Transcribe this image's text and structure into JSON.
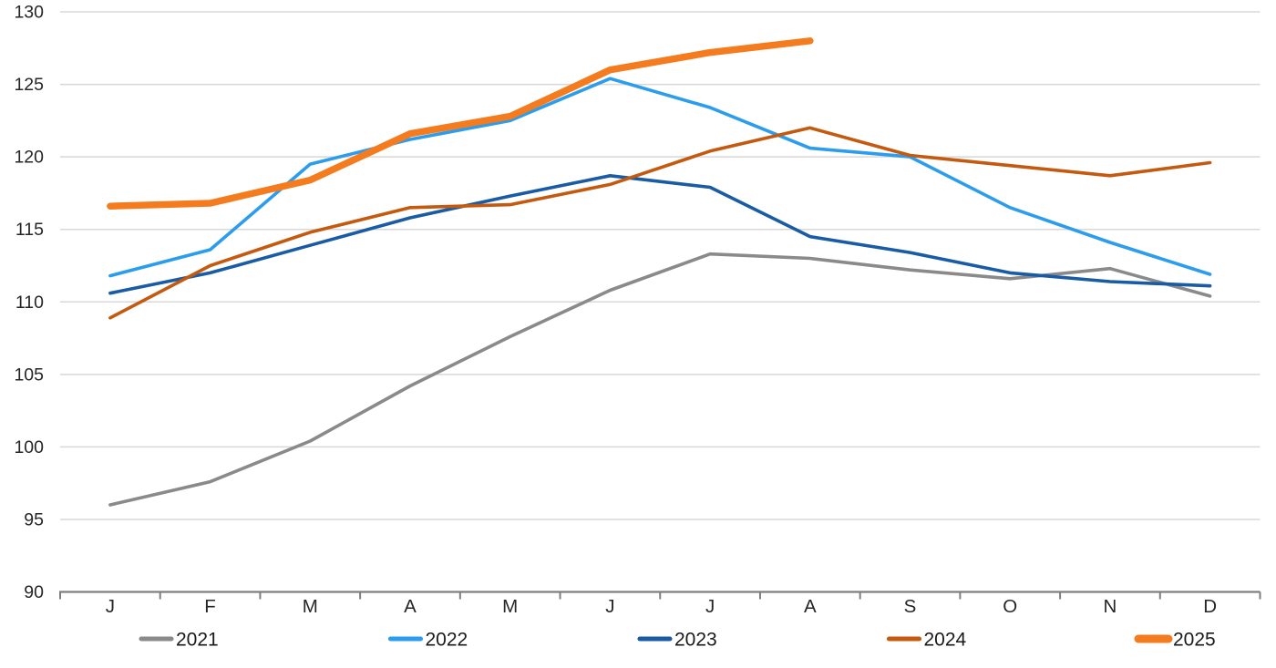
{
  "chart_data": {
    "type": "line",
    "title": "",
    "xlabel": "",
    "ylabel": "",
    "x_categories": [
      "J",
      "F",
      "M",
      "A",
      "M",
      "J",
      "J",
      "A",
      "S",
      "O",
      "N",
      "D"
    ],
    "y_ticks": [
      90,
      95,
      100,
      105,
      110,
      115,
      120,
      125,
      130
    ],
    "ylim": [
      90,
      130
    ],
    "grid": "horizontal",
    "legend_position": "bottom",
    "series": [
      {
        "name": "2021",
        "color": "#8A8A8A",
        "width": 3.6,
        "values": [
          96.0,
          97.6,
          100.4,
          104.2,
          107.6,
          110.8,
          113.3,
          113.0,
          112.2,
          111.6,
          112.3,
          110.4
        ]
      },
      {
        "name": "2022",
        "color": "#2C9CEC",
        "width": 3.6,
        "values": [
          111.8,
          113.6,
          119.5,
          121.2,
          122.5,
          125.4,
          123.4,
          120.6,
          120.0,
          116.5,
          114.1,
          111.9
        ]
      },
      {
        "name": "2023",
        "color": "#1A5BA5",
        "width": 3.6,
        "values": [
          110.6,
          112.0,
          113.9,
          115.8,
          117.3,
          118.7,
          117.9,
          114.5,
          113.4,
          112.0,
          111.4,
          111.1
        ]
      },
      {
        "name": "2024",
        "color": "#C45A10",
        "width": 3.6,
        "values": [
          108.9,
          112.5,
          114.8,
          116.5,
          116.7,
          118.1,
          120.4,
          122.0,
          120.1,
          119.4,
          118.7,
          119.6
        ]
      },
      {
        "name": "2025",
        "color": "#F57B1F",
        "width": 7.5,
        "values": [
          116.6,
          116.8,
          118.4,
          121.6,
          122.8,
          126.0,
          127.2,
          128.0
        ]
      }
    ],
    "colors": {
      "gridline": "#D8D8D8",
      "axis": "#7F7F7F",
      "tick_label": "#262626",
      "legend_text": "#1A1A1A"
    }
  }
}
